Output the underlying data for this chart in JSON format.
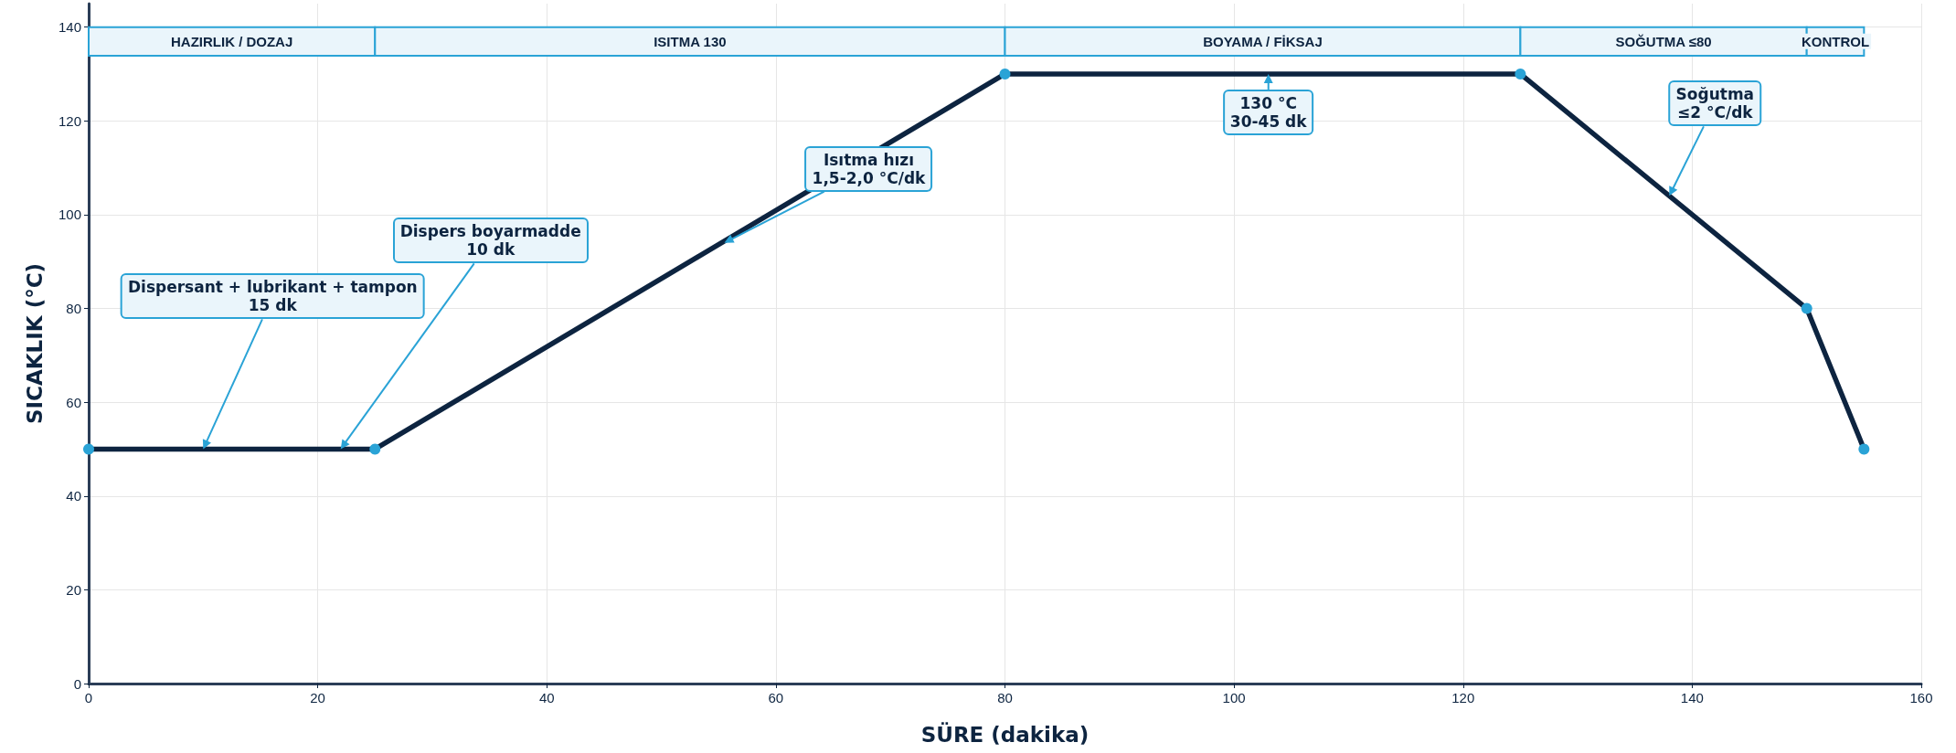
{
  "chart_data": {
    "type": "line",
    "xlabel": "SÜRE (dakika)",
    "ylabel": "SICAKLIK (°C)",
    "x": [
      0,
      25,
      80,
      125,
      150,
      155
    ],
    "series": [
      {
        "color": "#0d2440",
        "values": [
          50,
          50,
          130,
          130,
          80,
          50
        ]
      }
    ],
    "xlim": [
      0,
      160
    ],
    "xticks": [
      0,
      20,
      40,
      60,
      80,
      100,
      120,
      140,
      160
    ],
    "ylim": [
      0,
      145
    ],
    "yticks": [
      0,
      20,
      40,
      60,
      80,
      100,
      120,
      140
    ],
    "grid": true,
    "marker": "circle",
    "line_style": "solid",
    "bands": [
      {
        "axis": "x",
        "from": 0,
        "to": 25,
        "label": "HAZIRLIK / DOZAJ",
        "color": "#eaf5fb"
      },
      {
        "axis": "x",
        "from": 25,
        "to": 80,
        "label": "ISITMA 130",
        "color": "#eaf5fb"
      },
      {
        "axis": "x",
        "from": 80,
        "to": 125,
        "label": "BOYAMA / FİKSAJ",
        "color": "#eaf5fb"
      },
      {
        "axis": "x",
        "from": 125,
        "to": 150,
        "label": "SOĞUTMA ≤80",
        "color": "#eaf5fb"
      },
      {
        "axis": "x",
        "from": 150,
        "to": 155,
        "label": "KONTROL",
        "color": "#eaf5fb"
      }
    ],
    "annotations": [
      {
        "text": "Dispersant + lubrikant + tampon\n15 dk",
        "x": 10,
        "y": 50
      },
      {
        "text": "Dispers boyarmadde\n10 dk",
        "x": 22,
        "y": 50
      },
      {
        "text": "Isıtma hızı\n1,5-2,0 °C/dk",
        "x": 55.5,
        "y": 94
      },
      {
        "text": "130 °C\n30-45 dk",
        "x": 103,
        "y": 130
      },
      {
        "text": "Soğutma\n≤2 °C/dk",
        "x": 138,
        "y": 104
      }
    ]
  }
}
